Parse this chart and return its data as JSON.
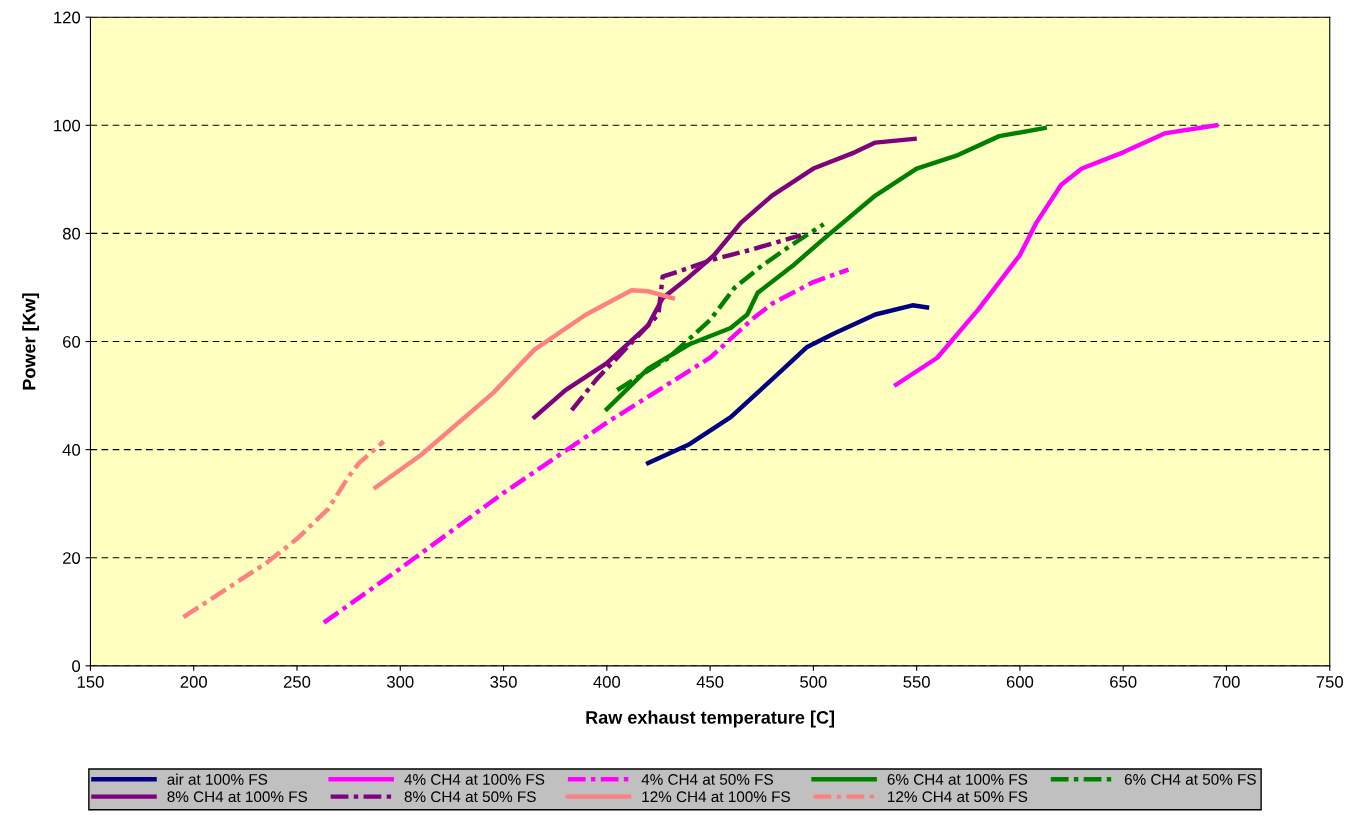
{
  "chart_data": {
    "type": "line",
    "xlabel": "Raw exhaust temperature [C]",
    "ylabel": "Power [Kw]",
    "xlim": [
      150,
      750
    ],
    "xticks": [
      150,
      200,
      250,
      300,
      350,
      400,
      450,
      500,
      550,
      600,
      650,
      700,
      750
    ],
    "ylim": [
      0,
      120
    ],
    "yticks": [
      0,
      20,
      40,
      60,
      80,
      100,
      120
    ],
    "grid": "y",
    "legend": "bottom",
    "marker": "none",
    "series": [
      {
        "name": "air at 100% FS",
        "color": "#000080",
        "line_style": "solid",
        "x": [
          420,
          440,
          460,
          480,
          497,
          510,
          530,
          548,
          555
        ],
        "values": [
          37.5,
          41,
          46,
          53,
          59,
          61.5,
          65,
          66.7,
          66.3
        ]
      },
      {
        "name": "4% CH4 at 100% FS",
        "color": "#ff00ff",
        "line_style": "solid",
        "x": [
          540,
          560,
          580,
          600,
          608,
          620,
          630,
          650,
          670,
          695
        ],
        "values": [
          52,
          57,
          66,
          76,
          82,
          89,
          92,
          95,
          98.5,
          100
        ]
      },
      {
        "name": "4% CH4 at 50% FS",
        "color": "#ff00ff",
        "line_style": "dashed",
        "x": [
          263,
          300,
          350,
          400,
          450,
          470,
          480,
          500,
          517
        ],
        "values": [
          8,
          18,
          32,
          45,
          57,
          64,
          67,
          71,
          73.3
        ]
      },
      {
        "name": "6% CH4 at 100% FS",
        "color": "#008000",
        "line_style": "solid",
        "x": [
          400,
          420,
          440,
          460,
          468,
          473,
          490,
          505,
          530,
          550,
          570,
          590,
          612
        ],
        "values": [
          47.5,
          55,
          59.5,
          62.5,
          65,
          69,
          74,
          79,
          87,
          92,
          94.5,
          98,
          99.5
        ]
      },
      {
        "name": "6% CH4 at 50% FS",
        "color": "#008000",
        "line_style": "dashed",
        "x": [
          405,
          430,
          450,
          462,
          475,
          490,
          505
        ],
        "values": [
          51,
          57,
          64,
          70,
          74,
          78,
          81.7
        ]
      },
      {
        "name": "8% CH4 at 100% FS",
        "color": "#800080",
        "line_style": "solid",
        "x": [
          365,
          380,
          400,
          420,
          427,
          440,
          452,
          465,
          480,
          500,
          520,
          530,
          549
        ],
        "values": [
          46,
          51,
          56,
          63,
          68,
          72,
          76,
          82,
          87,
          92,
          95,
          96.8,
          97.5
        ]
      },
      {
        "name": "8% CH4 at 50% FS",
        "color": "#800080",
        "line_style": "dashed",
        "x": [
          383,
          395,
          410,
          425,
          427,
          435,
          450,
          470,
          494
        ],
        "values": [
          47.3,
          53,
          59,
          65,
          72,
          73,
          75,
          77,
          79.7
        ]
      },
      {
        "name": "12% CH4 at 100% FS",
        "color": "#ff8080",
        "line_style": "solid",
        "x": [
          288,
          310,
          345,
          365,
          390,
          412,
          420,
          432
        ],
        "values": [
          33,
          39,
          50.5,
          58.5,
          65,
          69.5,
          69.3,
          68
        ]
      },
      {
        "name": "12% CH4 at 50% FS",
        "color": "#ff8080",
        "line_style": "dashed",
        "x": [
          195,
          215,
          235,
          250,
          265,
          275,
          280,
          292
        ],
        "values": [
          9,
          14,
          19,
          23.5,
          29,
          35,
          37.5,
          41.5
        ]
      }
    ]
  }
}
